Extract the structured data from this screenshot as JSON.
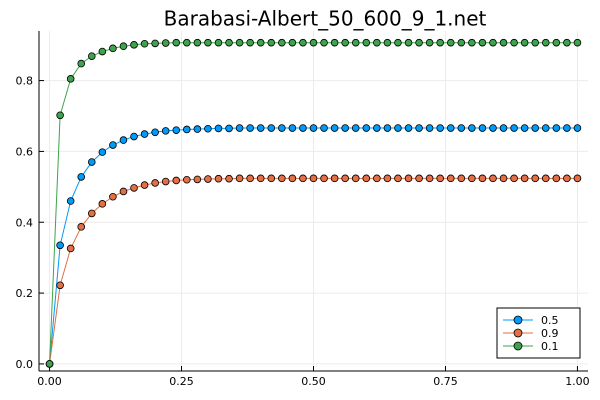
{
  "chart_data": {
    "type": "line",
    "title": "Barabasi-Albert_50_600_9_1.net",
    "xlabel": "",
    "ylabel": "",
    "xlim": [
      -0.02,
      1.02
    ],
    "ylim": [
      -0.02,
      0.94
    ],
    "xticks": [
      "0.00",
      "0.25",
      "0.50",
      "0.75",
      "1.00"
    ],
    "yticks": [
      "0.0",
      "0.2",
      "0.4",
      "0.6",
      "0.8"
    ],
    "grid": true,
    "legend_position": "bottom-right",
    "series": [
      {
        "name": "0.5",
        "color": "#009af9",
        "x": [
          0,
          0.02,
          0.04,
          0.06,
          0.08,
          0.1,
          0.12,
          0.14,
          0.16,
          0.18,
          0.2,
          0.22,
          0.24,
          0.26,
          0.28,
          0.3,
          0.32,
          0.34,
          0.36,
          0.38,
          0.4,
          0.42,
          0.44,
          0.46,
          0.48,
          0.5,
          0.52,
          0.54,
          0.56,
          0.58,
          0.6,
          0.62,
          0.64,
          0.66,
          0.68,
          0.7,
          0.72,
          0.74,
          0.76,
          0.78,
          0.8,
          0.82,
          0.84,
          0.86,
          0.88,
          0.9,
          0.92,
          0.94,
          0.96,
          0.98,
          1.0
        ],
        "y": [
          0,
          0.335,
          0.46,
          0.528,
          0.57,
          0.598,
          0.618,
          0.632,
          0.642,
          0.649,
          0.654,
          0.658,
          0.66,
          0.662,
          0.663,
          0.664,
          0.665,
          0.665,
          0.666,
          0.666,
          0.666,
          0.666,
          0.666,
          0.666,
          0.666,
          0.666,
          0.666,
          0.666,
          0.666,
          0.666,
          0.666,
          0.666,
          0.666,
          0.666,
          0.666,
          0.666,
          0.666,
          0.666,
          0.666,
          0.666,
          0.666,
          0.666,
          0.666,
          0.666,
          0.666,
          0.666,
          0.666,
          0.666,
          0.666,
          0.666,
          0.666
        ]
      },
      {
        "name": "0.9",
        "color": "#e26f46",
        "x": [
          0,
          0.02,
          0.04,
          0.06,
          0.08,
          0.1,
          0.12,
          0.14,
          0.16,
          0.18,
          0.2,
          0.22,
          0.24,
          0.26,
          0.28,
          0.3,
          0.32,
          0.34,
          0.36,
          0.38,
          0.4,
          0.42,
          0.44,
          0.46,
          0.48,
          0.5,
          0.52,
          0.54,
          0.56,
          0.58,
          0.6,
          0.62,
          0.64,
          0.66,
          0.68,
          0.7,
          0.72,
          0.74,
          0.76,
          0.78,
          0.8,
          0.82,
          0.84,
          0.86,
          0.88,
          0.9,
          0.92,
          0.94,
          0.96,
          0.98,
          1.0
        ],
        "y": [
          0,
          0.222,
          0.326,
          0.387,
          0.425,
          0.452,
          0.472,
          0.487,
          0.497,
          0.505,
          0.511,
          0.515,
          0.518,
          0.52,
          0.521,
          0.522,
          0.523,
          0.523,
          0.524,
          0.524,
          0.524,
          0.524,
          0.524,
          0.524,
          0.524,
          0.524,
          0.524,
          0.524,
          0.524,
          0.524,
          0.524,
          0.524,
          0.524,
          0.524,
          0.524,
          0.524,
          0.524,
          0.524,
          0.524,
          0.524,
          0.524,
          0.524,
          0.524,
          0.524,
          0.524,
          0.524,
          0.524,
          0.524,
          0.524,
          0.524,
          0.524
        ]
      },
      {
        "name": "0.1",
        "color": "#3da44d",
        "x": [
          0,
          0.02,
          0.04,
          0.06,
          0.08,
          0.1,
          0.12,
          0.14,
          0.16,
          0.18,
          0.2,
          0.22,
          0.24,
          0.26,
          0.28,
          0.3,
          0.32,
          0.34,
          0.36,
          0.38,
          0.4,
          0.42,
          0.44,
          0.46,
          0.48,
          0.5,
          0.52,
          0.54,
          0.56,
          0.58,
          0.6,
          0.62,
          0.64,
          0.66,
          0.68,
          0.7,
          0.72,
          0.74,
          0.76,
          0.78,
          0.8,
          0.82,
          0.84,
          0.86,
          0.88,
          0.9,
          0.92,
          0.94,
          0.96,
          0.98,
          1.0
        ],
        "y": [
          0,
          0.702,
          0.805,
          0.848,
          0.869,
          0.882,
          0.891,
          0.897,
          0.901,
          0.904,
          0.905,
          0.906,
          0.907,
          0.907,
          0.907,
          0.907,
          0.907,
          0.907,
          0.907,
          0.907,
          0.907,
          0.907,
          0.907,
          0.907,
          0.907,
          0.907,
          0.907,
          0.907,
          0.907,
          0.907,
          0.907,
          0.907,
          0.907,
          0.907,
          0.907,
          0.907,
          0.907,
          0.907,
          0.907,
          0.907,
          0.907,
          0.907,
          0.907,
          0.907,
          0.907,
          0.907,
          0.907,
          0.907,
          0.907,
          0.907,
          0.907
        ]
      }
    ]
  }
}
